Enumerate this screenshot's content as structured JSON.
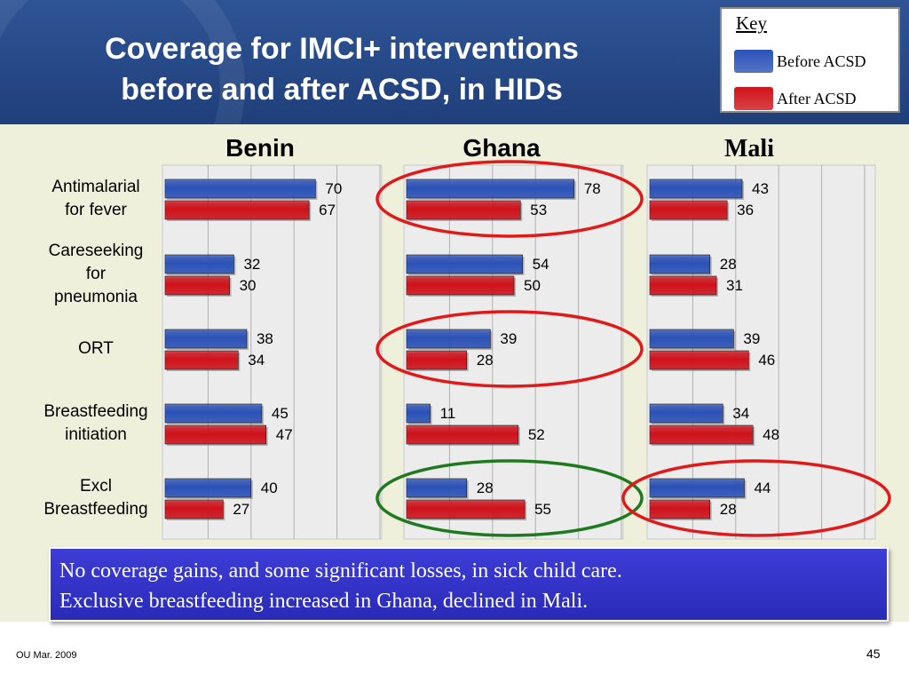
{
  "slide": {
    "title": "Coverage for IMCI+ interventions\nbefore and after ACSD, in HIDs",
    "key": {
      "title": "Key",
      "items": [
        {
          "label": "Before ACSD",
          "color": "#2b52b8"
        },
        {
          "label": "After ACSD",
          "color": "#d0121b"
        }
      ]
    },
    "callout": "No coverage gains, and some significant losses, in sick child care.\nExclusive breastfeeding increased in Ghana, declined in Mali.",
    "footer": "OU Mar. 2009",
    "page_number": "45"
  },
  "chart_data": {
    "type": "bar",
    "orientation": "horizontal",
    "categories": [
      [
        "Antimalarial",
        "for fever"
      ],
      [
        "Careseeking",
        "for",
        "pneumonia"
      ],
      [
        "ORT"
      ],
      [
        "Breastfeeding",
        "initiation"
      ],
      [
        "Excl",
        "Breastfeeding"
      ]
    ],
    "series_names": [
      "Before ACSD",
      "After ACSD"
    ],
    "series_colors": [
      "#2b52b8",
      "#d0121b"
    ],
    "xlim": [
      0,
      100
    ],
    "grid": true,
    "legend": "top-right",
    "panels": [
      {
        "title": "Benin",
        "before": [
          70,
          32,
          38,
          45,
          40
        ],
        "after": [
          67,
          30,
          34,
          47,
          27
        ],
        "circled": []
      },
      {
        "title": "Ghana",
        "before": [
          78,
          54,
          39,
          11,
          28
        ],
        "after": [
          53,
          50,
          28,
          52,
          55
        ],
        "circled": [
          {
            "row": 0,
            "color": "red"
          },
          {
            "row": 2,
            "color": "red"
          },
          {
            "row": 4,
            "color": "green"
          }
        ]
      },
      {
        "title": "Mali",
        "before": [
          43,
          28,
          39,
          34,
          44
        ],
        "after": [
          36,
          31,
          46,
          48,
          28
        ],
        "circled": [
          {
            "row": 4,
            "color": "red"
          }
        ]
      }
    ]
  }
}
